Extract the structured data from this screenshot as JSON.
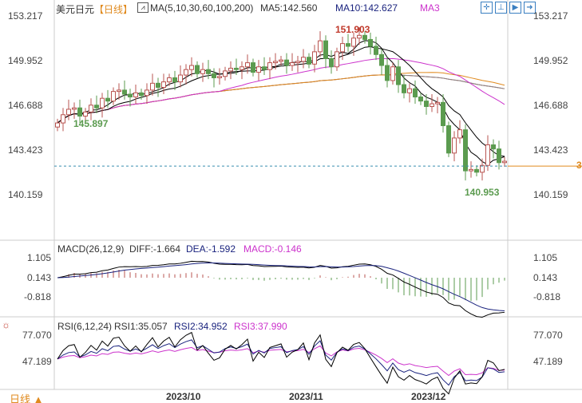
{
  "header": {
    "symbol": "美元日元",
    "period": "【日线】",
    "ma_label": "MA(5,10,30,60,100,200)",
    "ma5": "MA5:142.560",
    "ma10": "MA10:142.627",
    "ma3": "MA3"
  },
  "toolbar": [
    "crosshair-icon",
    "zoom-in-icon",
    "zoom-out-icon",
    "exit-icon"
  ],
  "price_axis": [
    "153.217",
    "149.952",
    "146.688",
    "143.423",
    "140.159"
  ],
  "annotations": {
    "high": "151.903",
    "low_left": "145.897",
    "low_right": "140.953",
    "current_marker": "3"
  },
  "macd": {
    "label": "MACD(26,12,9)",
    "diff": "DIFF:-1.664",
    "dea": "DEA:-1.592",
    "macd": "MACD:-0.146",
    "axis": [
      "1.105",
      "0.143",
      "-0.818"
    ]
  },
  "rsi": {
    "label": "RSI(6,12,24)",
    "rsi1": "RSI1:35.057",
    "rsi2": "RSI2:34.952",
    "rsi3": "RSI3:37.990",
    "axis": [
      "77.070",
      "47.189"
    ]
  },
  "footer": {
    "period_button": "日线 ▲",
    "dates": [
      "2023/10",
      "2023/11",
      "2023/12"
    ]
  },
  "colors": {
    "up": "#b85450",
    "down": "#5b9b4f",
    "ma30": "#e08a1e",
    "ma60": "#888888",
    "ma10": "#cc33cc",
    "ma200": "#b03030",
    "current": "#e08a1e"
  },
  "chart_data": {
    "type": "candlestick",
    "ylim": [
      136.9,
      153.217
    ],
    "closes": [
      145.4,
      146.0,
      146.4,
      146.5,
      145.9,
      146.2,
      146.7,
      146.5,
      147.2,
      147.0,
      147.7,
      147.8,
      147.5,
      147.3,
      147.6,
      147.4,
      147.8,
      148.3,
      148.0,
      148.4,
      148.7,
      148.4,
      148.9,
      149.3,
      149.6,
      149.0,
      149.3,
      149.0,
      148.7,
      148.8,
      149.2,
      149.4,
      149.3,
      149.5,
      149.8,
      149.1,
      149.5,
      149.3,
      149.8,
      149.9,
      150.0,
      149.6,
      149.8,
      149.9,
      150.2,
      149.7,
      150.6,
      151.4,
      150.1,
      149.5,
      150.6,
      151.2,
      151.0,
      151.6,
      151.8,
      151.5,
      151.0,
      150.4,
      149.6,
      148.5,
      149.5,
      148.2,
      147.6,
      147.9,
      147.3,
      147.0,
      146.6,
      146.8,
      146.9,
      145.2,
      143.2,
      144.3,
      144.9,
      141.9,
      142.0,
      141.8,
      142.3,
      143.8,
      143.5,
      142.5,
      142.6
    ],
    "current": 142.25
  }
}
